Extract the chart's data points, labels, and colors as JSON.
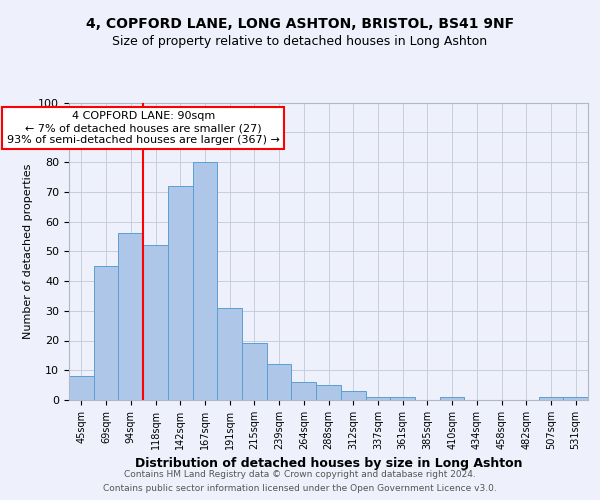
{
  "title1": "4, COPFORD LANE, LONG ASHTON, BRISTOL, BS41 9NF",
  "title2": "Size of property relative to detached houses in Long Ashton",
  "xlabel": "Distribution of detached houses by size in Long Ashton",
  "ylabel": "Number of detached properties",
  "footer1": "Contains HM Land Registry data © Crown copyright and database right 2024.",
  "footer2": "Contains public sector information licensed under the Open Government Licence v3.0.",
  "categories": [
    "45sqm",
    "69sqm",
    "94sqm",
    "118sqm",
    "142sqm",
    "167sqm",
    "191sqm",
    "215sqm",
    "239sqm",
    "264sqm",
    "288sqm",
    "312sqm",
    "337sqm",
    "361sqm",
    "385sqm",
    "410sqm",
    "434sqm",
    "458sqm",
    "482sqm",
    "507sqm",
    "531sqm"
  ],
  "values": [
    8,
    45,
    56,
    52,
    72,
    80,
    31,
    19,
    12,
    6,
    5,
    3,
    1,
    1,
    0,
    1,
    0,
    0,
    0,
    1,
    1
  ],
  "bar_color": "#aec6e8",
  "bar_edge_color": "#5a9fd4",
  "red_line_index": 2.5,
  "annotation_text": "4 COPFORD LANE: 90sqm\n← 7% of detached houses are smaller (27)\n93% of semi-detached houses are larger (367) →",
  "ylim": [
    0,
    100
  ],
  "background_color": "#eef1fb"
}
